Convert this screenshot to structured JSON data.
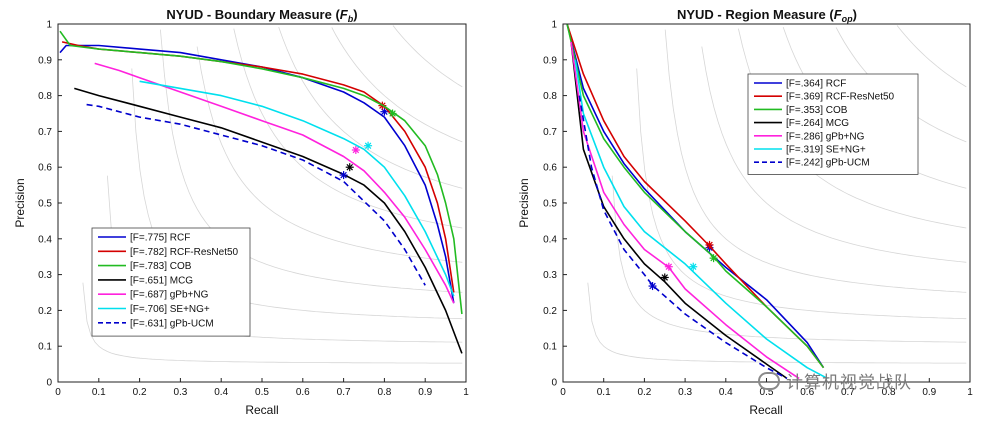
{
  "watermark": "计算机视觉战队",
  "chart_data": [
    {
      "type": "line",
      "title_main": "NYUD - Boundary Measure (",
      "title_sym": "F",
      "title_sub": "b",
      "title_end": ")",
      "xlabel": "Recall",
      "ylabel": "Precision",
      "xlim": [
        0,
        1
      ],
      "ylim": [
        0,
        1
      ],
      "ticks": [
        "0",
        "0.1",
        "0.2",
        "0.3",
        "0.4",
        "0.5",
        "0.6",
        "0.7",
        "0.8",
        "0.9",
        "1"
      ],
      "legend_position": "lower-left",
      "series": [
        {
          "name": "[F=.775] RCF",
          "color": "#0000d0",
          "dash": false,
          "x": [
            0.005,
            0.02,
            0.05,
            0.1,
            0.2,
            0.3,
            0.4,
            0.5,
            0.6,
            0.7,
            0.75,
            0.8,
            0.85,
            0.9,
            0.93,
            0.95,
            0.97
          ],
          "y": [
            0.92,
            0.94,
            0.94,
            0.94,
            0.93,
            0.92,
            0.9,
            0.88,
            0.85,
            0.81,
            0.78,
            0.74,
            0.66,
            0.55,
            0.44,
            0.35,
            0.22
          ],
          "marker": [
            0.8,
            0.755
          ]
        },
        {
          "name": "[F=.782] RCF-ResNet50",
          "color": "#d40000",
          "dash": false,
          "x": [
            0.01,
            0.05,
            0.1,
            0.2,
            0.3,
            0.4,
            0.5,
            0.6,
            0.7,
            0.75,
            0.8,
            0.85,
            0.9,
            0.93,
            0.95,
            0.97
          ],
          "y": [
            0.95,
            0.94,
            0.93,
            0.92,
            0.91,
            0.895,
            0.88,
            0.86,
            0.83,
            0.81,
            0.77,
            0.7,
            0.6,
            0.5,
            0.4,
            0.25
          ],
          "marker": [
            0.795,
            0.772
          ]
        },
        {
          "name": "[F=.783] COB",
          "color": "#22bb22",
          "dash": false,
          "x": [
            0.005,
            0.03,
            0.1,
            0.2,
            0.3,
            0.4,
            0.5,
            0.6,
            0.7,
            0.75,
            0.8,
            0.85,
            0.9,
            0.93,
            0.95,
            0.97,
            0.99
          ],
          "y": [
            0.98,
            0.94,
            0.93,
            0.92,
            0.91,
            0.895,
            0.875,
            0.85,
            0.82,
            0.8,
            0.77,
            0.73,
            0.66,
            0.58,
            0.5,
            0.4,
            0.19
          ],
          "marker": [
            0.82,
            0.75
          ]
        },
        {
          "name": "[F=.651] MCG",
          "color": "#000000",
          "dash": false,
          "x": [
            0.04,
            0.1,
            0.2,
            0.3,
            0.4,
            0.5,
            0.6,
            0.7,
            0.75,
            0.8,
            0.85,
            0.9,
            0.95,
            0.99
          ],
          "y": [
            0.82,
            0.8,
            0.77,
            0.74,
            0.71,
            0.67,
            0.63,
            0.58,
            0.55,
            0.5,
            0.42,
            0.32,
            0.2,
            0.08
          ],
          "marker": [
            0.715,
            0.6
          ]
        },
        {
          "name": "[F=.687] gPb+NG",
          "color": "#ff22dd",
          "dash": false,
          "x": [
            0.09,
            0.15,
            0.2,
            0.3,
            0.4,
            0.5,
            0.6,
            0.7,
            0.75,
            0.8,
            0.85,
            0.9,
            0.95,
            0.97
          ],
          "y": [
            0.89,
            0.87,
            0.85,
            0.81,
            0.77,
            0.73,
            0.69,
            0.63,
            0.59,
            0.53,
            0.46,
            0.37,
            0.27,
            0.22
          ],
          "marker": [
            0.73,
            0.648
          ]
        },
        {
          "name": "[F=.706] SE+NG+",
          "color": "#00e0ee",
          "dash": false,
          "x": [
            0.2,
            0.3,
            0.4,
            0.5,
            0.6,
            0.7,
            0.75,
            0.8,
            0.85,
            0.9,
            0.95,
            0.97
          ],
          "y": [
            0.84,
            0.82,
            0.8,
            0.77,
            0.73,
            0.68,
            0.65,
            0.6,
            0.52,
            0.42,
            0.3,
            0.24
          ],
          "marker": [
            0.76,
            0.66
          ]
        },
        {
          "name": "[F=.631] gPb-UCM",
          "color": "#0000cc",
          "dash": true,
          "x": [
            0.07,
            0.1,
            0.2,
            0.3,
            0.4,
            0.5,
            0.6,
            0.7,
            0.8,
            0.85,
            0.9
          ],
          "y": [
            0.775,
            0.77,
            0.74,
            0.72,
            0.69,
            0.66,
            0.62,
            0.56,
            0.45,
            0.37,
            0.27
          ],
          "marker": [
            0.7,
            0.578
          ]
        }
      ]
    },
    {
      "type": "line",
      "title_main": "NYUD - Region Measure (",
      "title_sym": "F",
      "title_sub": "op",
      "title_end": ")",
      "xlabel": "Recall",
      "ylabel": "Precision",
      "xlim": [
        0,
        1
      ],
      "ylim": [
        0,
        1
      ],
      "ticks": [
        "0",
        "0.1",
        "0.2",
        "0.3",
        "0.4",
        "0.5",
        "0.6",
        "0.7",
        "0.8",
        "0.9",
        "1"
      ],
      "legend_position": "top-right",
      "series": [
        {
          "name": "[F=.364] RCF",
          "color": "#0000d0",
          "dash": false,
          "x": [
            0.01,
            0.05,
            0.1,
            0.15,
            0.2,
            0.3,
            0.35,
            0.4,
            0.5,
            0.6,
            0.64
          ],
          "y": [
            1.0,
            0.82,
            0.7,
            0.61,
            0.54,
            0.42,
            0.37,
            0.32,
            0.23,
            0.11,
            0.04
          ],
          "marker": [
            0.36,
            0.375
          ]
        },
        {
          "name": "[F=.369] RCF-ResNet50",
          "color": "#d40000",
          "dash": false,
          "x": [
            0.01,
            0.05,
            0.1,
            0.15,
            0.2,
            0.3,
            0.36,
            0.4,
            0.5,
            0.6,
            0.64
          ],
          "y": [
            1.0,
            0.86,
            0.73,
            0.63,
            0.56,
            0.45,
            0.38,
            0.33,
            0.21,
            0.1,
            0.04
          ],
          "marker": [
            0.36,
            0.383
          ]
        },
        {
          "name": "[F=.353] COB",
          "color": "#22bb22",
          "dash": false,
          "x": [
            0.01,
            0.05,
            0.1,
            0.15,
            0.2,
            0.3,
            0.37,
            0.4,
            0.5,
            0.6,
            0.64
          ],
          "y": [
            1.0,
            0.8,
            0.68,
            0.6,
            0.53,
            0.42,
            0.35,
            0.31,
            0.21,
            0.1,
            0.04
          ],
          "marker": [
            0.37,
            0.346
          ]
        },
        {
          "name": "[F=.264] MCG",
          "color": "#000000",
          "dash": false,
          "x": [
            0.02,
            0.05,
            0.1,
            0.15,
            0.2,
            0.25,
            0.3,
            0.4,
            0.5,
            0.55
          ],
          "y": [
            0.95,
            0.65,
            0.49,
            0.4,
            0.33,
            0.28,
            0.22,
            0.13,
            0.05,
            0.01
          ],
          "marker": [
            0.25,
            0.292
          ]
        },
        {
          "name": "[F=.286] gPb+NG",
          "color": "#ff22dd",
          "dash": false,
          "x": [
            0.02,
            0.05,
            0.1,
            0.15,
            0.2,
            0.26,
            0.3,
            0.4,
            0.5,
            0.58
          ],
          "y": [
            0.95,
            0.7,
            0.53,
            0.44,
            0.37,
            0.32,
            0.26,
            0.16,
            0.07,
            0.01
          ],
          "marker": [
            0.26,
            0.322
          ]
        },
        {
          "name": "[F=.319] SE+NG+",
          "color": "#00e0ee",
          "dash": false,
          "x": [
            0.03,
            0.05,
            0.1,
            0.15,
            0.2,
            0.3,
            0.4,
            0.5,
            0.6,
            0.65
          ],
          "y": [
            0.9,
            0.75,
            0.6,
            0.49,
            0.42,
            0.33,
            0.22,
            0.12,
            0.04,
            0.01
          ],
          "marker": [
            0.32,
            0.322
          ]
        },
        {
          "name": "[F=.242] gPb-UCM",
          "color": "#0000cc",
          "dash": true,
          "x": [
            0.04,
            0.07,
            0.1,
            0.15,
            0.2,
            0.22,
            0.3,
            0.4,
            0.5,
            0.55
          ],
          "y": [
            0.8,
            0.6,
            0.48,
            0.37,
            0.3,
            0.27,
            0.19,
            0.11,
            0.04,
            0.01
          ],
          "marker": [
            0.22,
            0.268
          ]
        }
      ]
    }
  ]
}
